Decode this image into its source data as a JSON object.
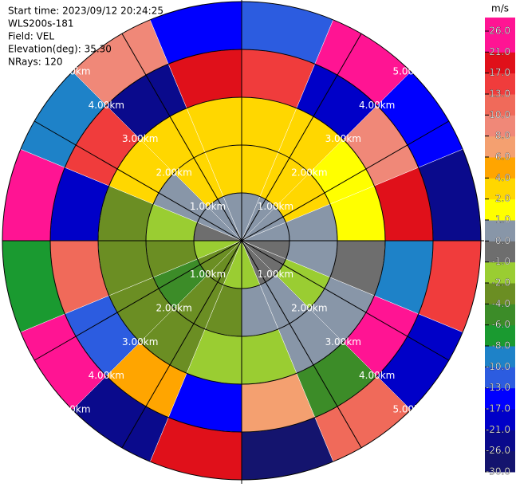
{
  "chart_data": {
    "type": "polar",
    "header": [
      "Start time: 2023/09/12 20:24:25",
      "WLS200s-181",
      "Field: VEL",
      "Elevation(deg): 35.30",
      "NRays: 120"
    ],
    "field": {
      "azimuths": [
        0,
        22.5,
        45,
        67.5,
        90,
        112.5,
        135,
        157.5,
        180,
        202.5,
        225,
        247.5,
        270,
        292.5,
        315,
        337.5
      ],
      "range_km": [
        0,
        1,
        2,
        3,
        4,
        5
      ],
      "values": [
        [
          0.5,
          2.5,
          3,
          15,
          -12
        ],
        [
          0.5,
          2.5,
          3.5,
          -20,
          22
        ],
        [
          0.5,
          2.5,
          1.5,
          9,
          -15
        ],
        [
          0.5,
          0.5,
          1.5,
          18,
          -25
        ],
        [
          -0.5,
          0.5,
          -0.5,
          -9,
          14
        ],
        [
          -0.5,
          -1.5,
          0.5,
          23,
          -18
        ],
        [
          -0.5,
          0.5,
          0.5,
          -5,
          11
        ],
        [
          -1.5,
          0.5,
          -1.5,
          7,
          -28
        ],
        [
          -1.5,
          -2.5,
          -1.5,
          -14,
          19
        ],
        [
          -2.5,
          -3,
          -3,
          5,
          -22
        ],
        [
          -2.5,
          -5,
          -3,
          -11,
          24
        ],
        [
          -1.5,
          -3,
          -3,
          12,
          -7
        ],
        [
          -0.5,
          -1.5,
          -3,
          -19,
          27
        ],
        [
          0.5,
          0.5,
          3,
          16,
          -10
        ],
        [
          0.5,
          2.5,
          3,
          -24,
          9
        ],
        [
          0.5,
          2.5,
          3,
          20,
          -16
        ]
      ]
    },
    "rings": [
      {
        "value": 1,
        "label": "1.00km"
      },
      {
        "value": 2,
        "label": "2.00km"
      },
      {
        "value": 3,
        "label": "3.00km"
      },
      {
        "value": 4,
        "label": "4.00km"
      },
      {
        "value": 5,
        "label": "5.00km"
      }
    ],
    "colorbar": {
      "unit": "m/s",
      "ticks": [
        {
          "value": -30,
          "label": "-30.0"
        },
        {
          "value": -26,
          "label": "-26.0"
        },
        {
          "value": -21,
          "label": "-21.0"
        },
        {
          "value": -17,
          "label": "-17.0"
        },
        {
          "value": -13,
          "label": "-13.0"
        },
        {
          "value": -10,
          "label": "-10.0"
        },
        {
          "value": -8,
          "label": "-8.0"
        },
        {
          "value": -6,
          "label": "-6.0"
        },
        {
          "value": -4,
          "label": "-4.0"
        },
        {
          "value": -2,
          "label": "-2.0"
        },
        {
          "value": -1,
          "label": "-1.0"
        },
        {
          "value": 0,
          "label": "0.0"
        },
        {
          "value": 1,
          "label": "1.0"
        },
        {
          "value": 2,
          "label": "2.0"
        },
        {
          "value": 4,
          "label": "4.0"
        },
        {
          "value": 6,
          "label": "6.0"
        },
        {
          "value": 8,
          "label": "8.0"
        },
        {
          "value": 10,
          "label": "10.0"
        },
        {
          "value": 13,
          "label": "13.0"
        },
        {
          "value": 17,
          "label": "17.0"
        },
        {
          "value": 21,
          "label": "21.0"
        },
        {
          "value": 26,
          "label": "26.0"
        }
      ],
      "colors": [
        "#14146e",
        "#0a0a8c",
        "#0000c8",
        "#0000ff",
        "#2c5ce0",
        "#1e82c8",
        "#1a9a30",
        "#3c8c28",
        "#6b8e23",
        "#9acd32",
        "#6e6e6e",
        "#8896a8",
        "#ffff00",
        "#ffd700",
        "#ffa500",
        "#f4a070",
        "#f08878",
        "#f06a5a",
        "#f03c3c",
        "#e0101a",
        "#ff1493"
      ]
    }
  }
}
